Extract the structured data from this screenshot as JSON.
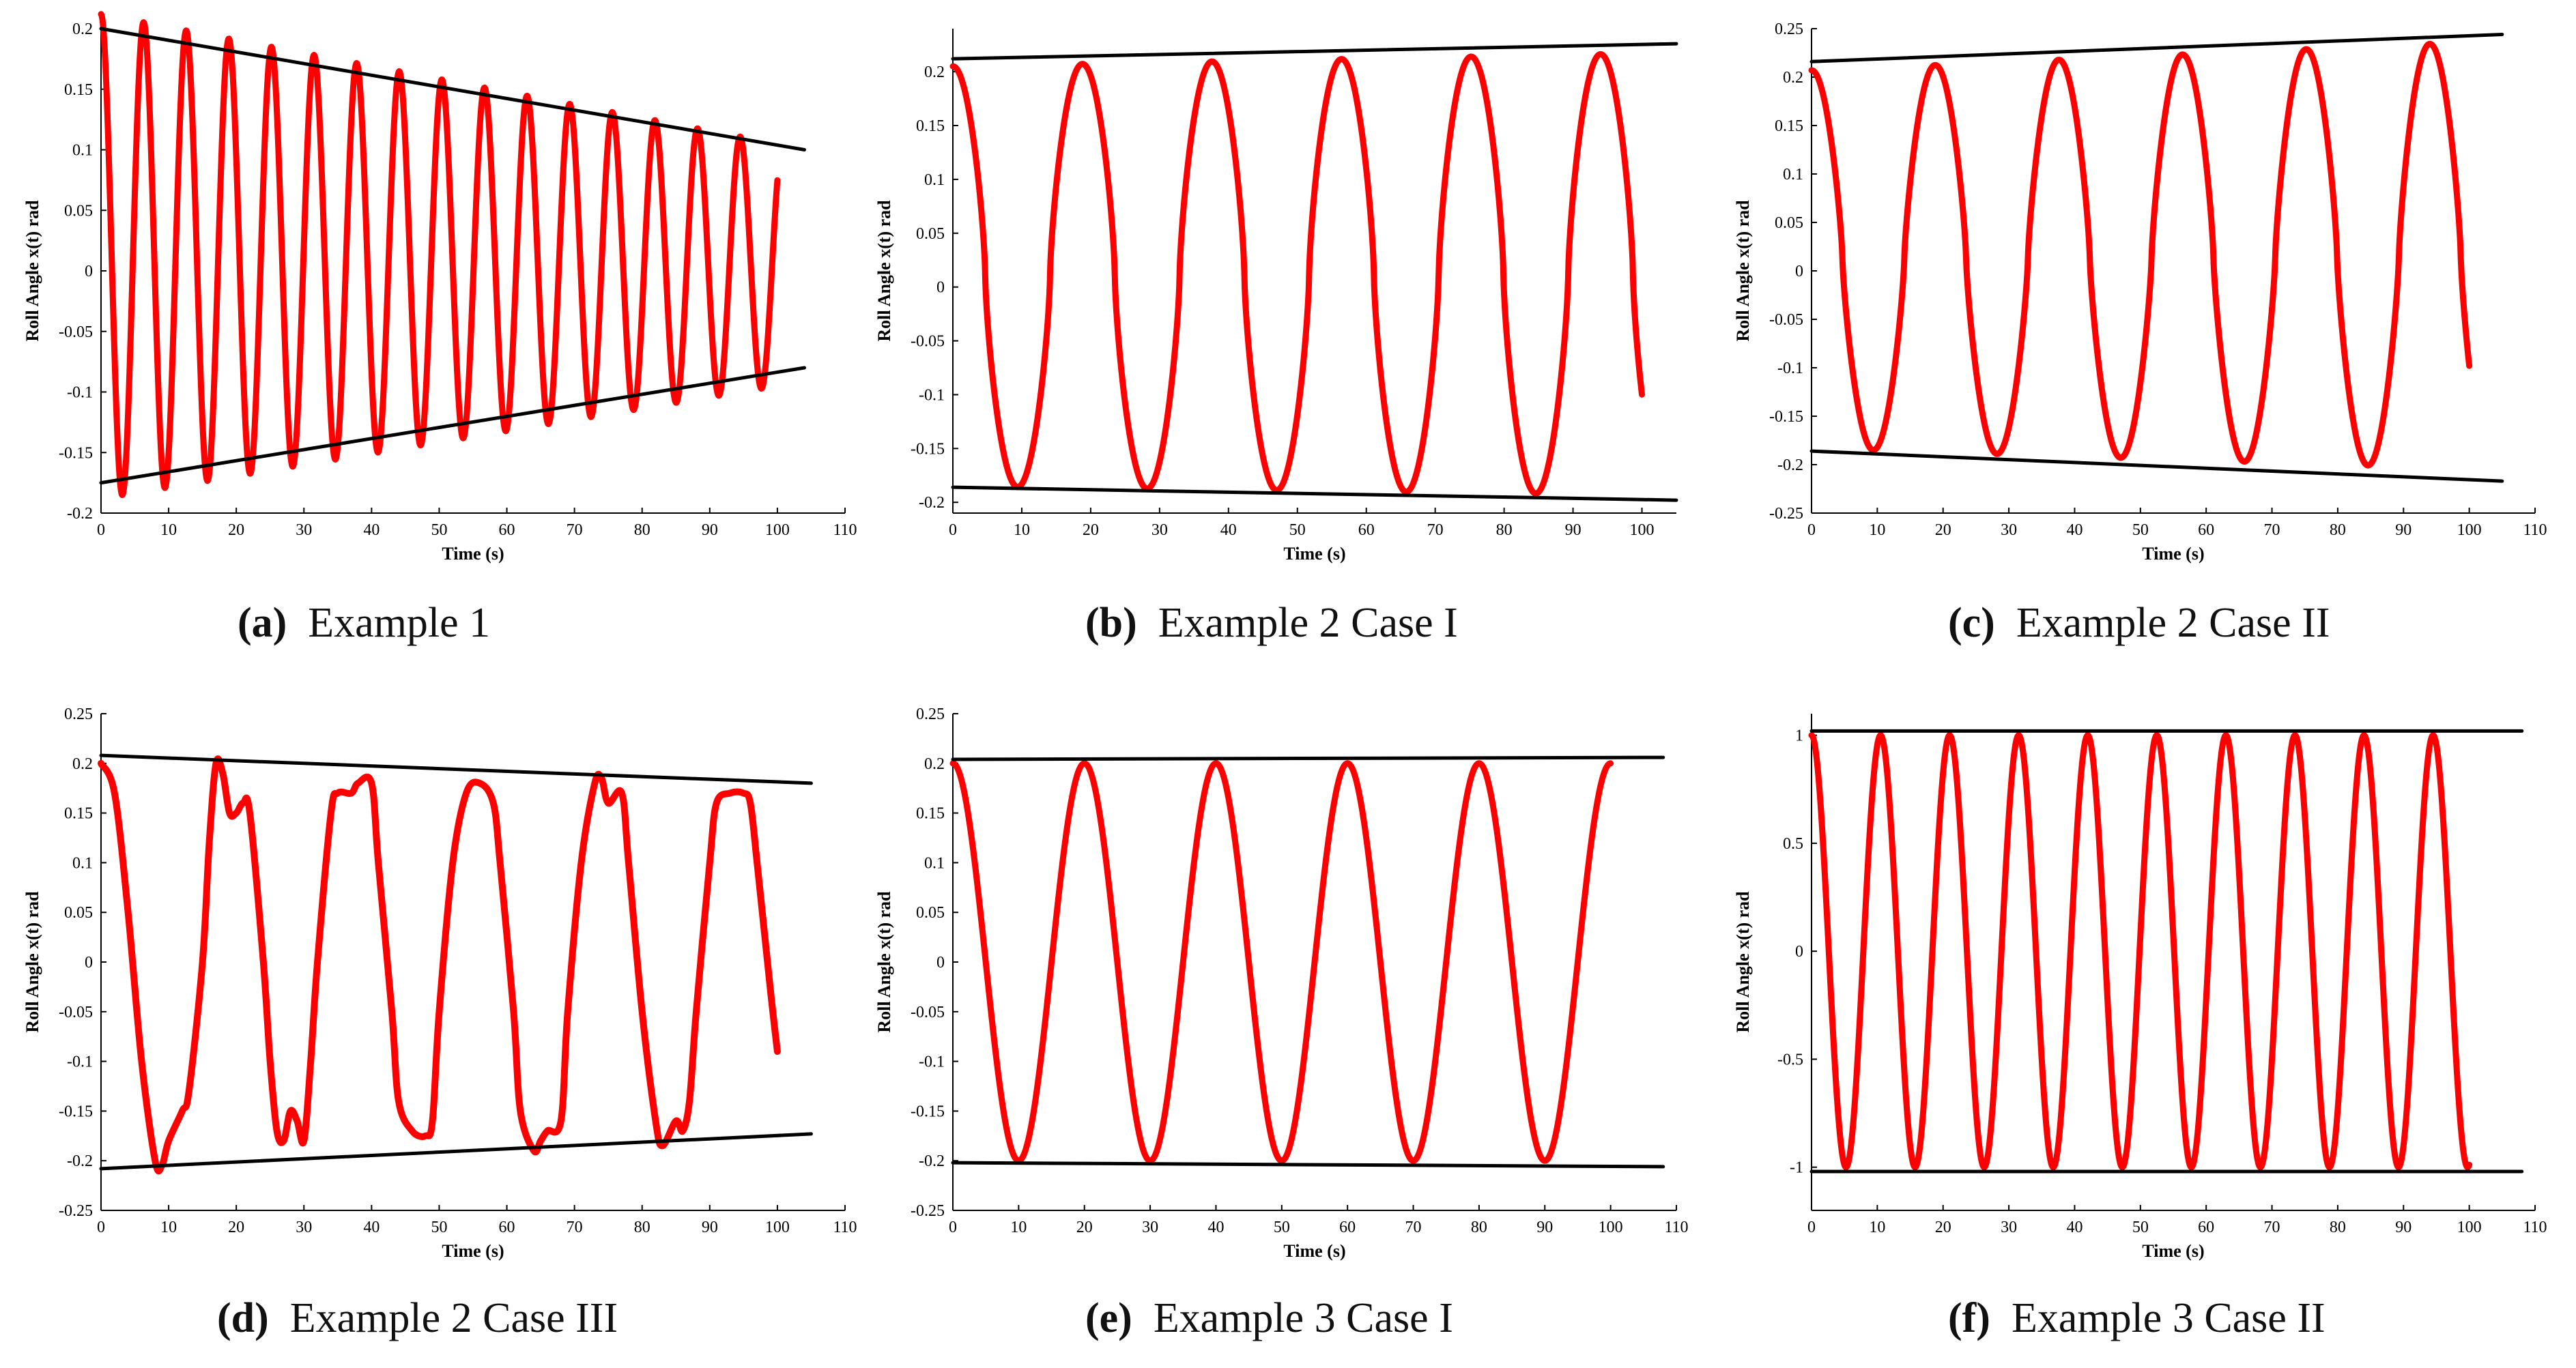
{
  "figure": {
    "colors": {
      "signal": "#ff0000",
      "envelope": "#000000",
      "axis": "#000000"
    },
    "panels": [
      {
        "id": "a",
        "label": "(a)",
        "title": "Example 1",
        "chart_data": {
          "type": "line",
          "xlabel": "Time (s)",
          "ylabel": "Roll Angle x(t) rad",
          "xlim": [
            0,
            110
          ],
          "ylim": [
            -0.2,
            0.2
          ],
          "xticks": [
            0,
            10,
            20,
            30,
            40,
            50,
            60,
            70,
            80,
            90,
            100,
            110
          ],
          "yticks": [
            -0.2,
            -0.15,
            -0.1,
            -0.05,
            0,
            0.05,
            0.1,
            0.15,
            0.2
          ],
          "ytick_labels": [
            "-0.2",
            "-0.15",
            "-0.1",
            "-0.05",
            "0",
            "0.05",
            "0.1",
            "0.15",
            "0.2"
          ],
          "series": [
            {
              "name": "roll angle",
              "style": "marker",
              "t_end": 100,
              "period": 6.3,
              "start_amp": 0.2,
              "end_amp": 0.1,
              "amp_shape": "linear",
              "offset_start": 0.012,
              "offset_end": 0.005,
              "waveform": "cos",
              "sharpness": 0
            },
            {
              "name": "upper envelope",
              "style": "line",
              "points": [
                [
                  0,
                  0.2
                ],
                [
                  104,
                  0.1
                ]
              ]
            },
            {
              "name": "lower envelope",
              "style": "line",
              "points": [
                [
                  0,
                  -0.175
                ],
                [
                  104,
                  -0.08
                ]
              ]
            }
          ]
        }
      },
      {
        "id": "b",
        "label": "(b)",
        "title": "Example 2 Case I",
        "chart_data": {
          "type": "line",
          "xlabel": "Time (s)",
          "ylabel": "Roll Angle x(t) rad",
          "xlim": [
            0,
            105
          ],
          "ylim": [
            -0.21,
            0.24
          ],
          "xticks": [
            0,
            10,
            20,
            30,
            40,
            50,
            60,
            70,
            80,
            90,
            100
          ],
          "yticks": [
            -0.2,
            -0.15,
            -0.1,
            -0.05,
            0,
            0.05,
            0.1,
            0.15,
            0.2
          ],
          "ytick_labels": [
            "-0.2",
            "-0.15",
            "-0.1",
            "-0.05",
            "0",
            "0.05",
            "0.1",
            "0.15",
            "0.2"
          ],
          "series": [
            {
              "name": "roll angle",
              "style": "marker",
              "t_end": 100,
              "period": 18.8,
              "start_amp": 0.195,
              "end_amp": 0.205,
              "amp_shape": "linear",
              "offset_start": 0.01,
              "offset_end": 0.012,
              "waveform": "cos",
              "sharpness": 0.5
            },
            {
              "name": "upper envelope",
              "style": "line",
              "points": [
                [
                  0,
                  0.212
                ],
                [
                  105,
                  0.226
                ]
              ]
            },
            {
              "name": "lower envelope",
              "style": "line",
              "points": [
                [
                  0,
                  -0.186
                ],
                [
                  105,
                  -0.198
                ]
              ]
            }
          ]
        }
      },
      {
        "id": "c",
        "label": "(c)",
        "title": "Example 2 Case II",
        "chart_data": {
          "type": "line",
          "xlabel": "Time (s)",
          "ylabel": "Roll Angle x(t) rad",
          "xlim": [
            0,
            110
          ],
          "ylim": [
            -0.25,
            0.25
          ],
          "xticks": [
            0,
            10,
            20,
            30,
            40,
            50,
            60,
            70,
            80,
            90,
            100,
            110
          ],
          "yticks": [
            -0.25,
            -0.2,
            -0.15,
            -0.1,
            -0.05,
            0,
            0.05,
            0.1,
            0.15,
            0.2,
            0.25
          ],
          "ytick_labels": [
            "-0.25",
            "-0.2",
            "-0.15",
            "-0.1",
            "-0.05",
            "0",
            "0.05",
            "0.1",
            "0.15",
            "0.2",
            "0.25"
          ],
          "series": [
            {
              "name": "roll angle",
              "style": "marker",
              "t_end": 100,
              "period": 18.8,
              "start_amp": 0.195,
              "end_amp": 0.22,
              "amp_shape": "linear",
              "offset_start": 0.012,
              "offset_end": 0.016,
              "waveform": "cos",
              "sharpness": 0.4
            },
            {
              "name": "upper envelope",
              "style": "line",
              "points": [
                [
                  0,
                  0.216
                ],
                [
                  105,
                  0.244
                ]
              ]
            },
            {
              "name": "lower envelope",
              "style": "line",
              "points": [
                [
                  0,
                  -0.186
                ],
                [
                  105,
                  -0.217
                ]
              ]
            }
          ]
        }
      },
      {
        "id": "d",
        "label": "(d)",
        "title": "Example 2 Case III",
        "chart_data": {
          "type": "line",
          "xlabel": "Time (s)",
          "ylabel": "Roll Angle x(t) rad",
          "xlim": [
            0,
            110
          ],
          "ylim": [
            -0.25,
            0.25
          ],
          "xticks": [
            0,
            10,
            20,
            30,
            40,
            50,
            60,
            70,
            80,
            90,
            100,
            110
          ],
          "yticks": [
            -0.25,
            -0.2,
            -0.15,
            -0.1,
            -0.05,
            0,
            0.05,
            0.1,
            0.15,
            0.2,
            0.25
          ],
          "ytick_labels": [
            "-0.25",
            "-0.2",
            "-0.15",
            "-0.1",
            "-0.05",
            "0",
            "0.05",
            "0.1",
            "0.15",
            "0.2",
            "0.25"
          ],
          "series": [
            {
              "name": "roll angle",
              "style": "points",
              "points": [
                [
                  0,
                  0.2
                ],
                [
                  2,
                  0.17
                ],
                [
                  4,
                  0.05
                ],
                [
                  6,
                  -0.1
                ],
                [
                  8,
                  -0.2
                ],
                [
                  9,
                  -0.205
                ],
                [
                  10,
                  -0.18
                ],
                [
                  12,
                  -0.15
                ],
                [
                  13,
                  -0.13
                ],
                [
                  15,
                  0.0
                ],
                [
                  16,
                  0.12
                ],
                [
                  17,
                  0.2
                ],
                [
                  18,
                  0.19
                ],
                [
                  19,
                  0.15
                ],
                [
                  20,
                  0.15
                ],
                [
                  21,
                  0.16
                ],
                [
                  22,
                  0.15
                ],
                [
                  24,
                  0.0
                ],
                [
                  25,
                  -0.1
                ],
                [
                  26,
                  -0.17
                ],
                [
                  27,
                  -0.18
                ],
                [
                  28,
                  -0.15
                ],
                [
                  29,
                  -0.16
                ],
                [
                  30,
                  -0.18
                ],
                [
                  31,
                  -0.1
                ],
                [
                  32,
                  0.0
                ],
                [
                  34,
                  0.15
                ],
                [
                  35,
                  0.17
                ],
                [
                  37,
                  0.17
                ],
                [
                  38,
                  0.18
                ],
                [
                  40,
                  0.18
                ],
                [
                  41,
                  0.1
                ],
                [
                  43,
                  -0.05
                ],
                [
                  44,
                  -0.14
                ],
                [
                  46,
                  -0.17
                ],
                [
                  48,
                  -0.175
                ],
                [
                  49,
                  -0.16
                ],
                [
                  50,
                  -0.05
                ],
                [
                  52,
                  0.1
                ],
                [
                  54,
                  0.17
                ],
                [
                  56,
                  0.18
                ],
                [
                  58,
                  0.16
                ],
                [
                  59,
                  0.1
                ],
                [
                  61,
                  -0.05
                ],
                [
                  62,
                  -0.15
                ],
                [
                  64,
                  -0.19
                ],
                [
                  65,
                  -0.18
                ],
                [
                  66,
                  -0.17
                ],
                [
                  68,
                  -0.16
                ],
                [
                  69,
                  -0.05
                ],
                [
                  71,
                  0.1
                ],
                [
                  73,
                  0.18
                ],
                [
                  74,
                  0.185
                ],
                [
                  75,
                  0.16
                ],
                [
                  77,
                  0.17
                ],
                [
                  78,
                  0.1
                ],
                [
                  80,
                  -0.05
                ],
                [
                  82,
                  -0.16
                ],
                [
                  83,
                  -0.185
                ],
                [
                  85,
                  -0.16
                ],
                [
                  86,
                  -0.17
                ],
                [
                  87,
                  -0.14
                ],
                [
                  88,
                  -0.05
                ],
                [
                  90,
                  0.1
                ],
                [
                  91,
                  0.16
                ],
                [
                  93,
                  0.17
                ],
                [
                  95,
                  0.17
                ],
                [
                  96,
                  0.16
                ],
                [
                  97,
                  0.1
                ],
                [
                  99,
                  -0.03
                ],
                [
                  100,
                  -0.09
                ]
              ]
            },
            {
              "name": "upper envelope",
              "style": "line",
              "points": [
                [
                  0,
                  0.208
                ],
                [
                  105,
                  0.18
                ]
              ]
            },
            {
              "name": "lower envelope",
              "style": "line",
              "points": [
                [
                  0,
                  -0.208
                ],
                [
                  105,
                  -0.173
                ]
              ]
            }
          ]
        }
      },
      {
        "id": "e",
        "label": "(e)",
        "title": "Example 3 Case I",
        "chart_data": {
          "type": "line",
          "xlabel": "Time (s)",
          "ylabel": "Roll Angle x(t) rad",
          "xlim": [
            0,
            110
          ],
          "ylim": [
            -0.25,
            0.25
          ],
          "xticks": [
            0,
            10,
            20,
            30,
            40,
            50,
            60,
            70,
            80,
            90,
            100,
            110
          ],
          "yticks": [
            -0.25,
            -0.2,
            -0.15,
            -0.1,
            -0.05,
            0,
            0.05,
            0.1,
            0.15,
            0.2,
            0.25
          ],
          "ytick_labels": [
            "-0.25",
            "-0.2",
            "-0.15",
            "-0.1",
            "-0.05",
            "0",
            "0.05",
            "0.1",
            "0.15",
            "0.2",
            "0.25"
          ],
          "series": [
            {
              "name": "roll angle",
              "style": "marker",
              "t_end": 100,
              "period": 20.0,
              "start_amp": 0.2,
              "end_amp": 0.2,
              "amp_shape": "linear",
              "offset_start": 0.0,
              "offset_end": 0.0,
              "waveform": "cos",
              "sharpness": 0
            },
            {
              "name": "upper envelope",
              "style": "line",
              "points": [
                [
                  0,
                  0.204
                ],
                [
                  108,
                  0.206
                ]
              ]
            },
            {
              "name": "lower envelope",
              "style": "line",
              "points": [
                [
                  0,
                  -0.202
                ],
                [
                  108,
                  -0.206
                ]
              ]
            }
          ]
        }
      },
      {
        "id": "f",
        "label": "(f)",
        "title": "Example 3 Case II",
        "chart_data": {
          "type": "line",
          "xlabel": "Time (s)",
          "ylabel": "Roll Angle x(t) rad",
          "xlim": [
            0,
            110
          ],
          "ylim": [
            -1.2,
            1.1
          ],
          "xticks": [
            0,
            10,
            20,
            30,
            40,
            50,
            60,
            70,
            80,
            90,
            100,
            110
          ],
          "yticks": [
            -1,
            -0.5,
            0,
            0.5,
            1
          ],
          "ytick_labels": [
            "-1",
            "-0.5",
            "0",
            "0.5",
            "1"
          ],
          "series": [
            {
              "name": "roll angle",
              "style": "marker",
              "t_end": 100,
              "period": 10.5,
              "start_amp": 1.0,
              "end_amp": 1.0,
              "amp_shape": "linear",
              "offset_start": 0.0,
              "offset_end": 0.0,
              "waveform": "cos",
              "sharpness": 0
            },
            {
              "name": "upper envelope",
              "style": "line",
              "points": [
                [
                  0,
                  1.02
                ],
                [
                  108,
                  1.02
                ]
              ]
            },
            {
              "name": "lower envelope",
              "style": "line",
              "points": [
                [
                  0,
                  -1.02
                ],
                [
                  108,
                  -1.02
                ]
              ]
            }
          ]
        }
      }
    ]
  }
}
